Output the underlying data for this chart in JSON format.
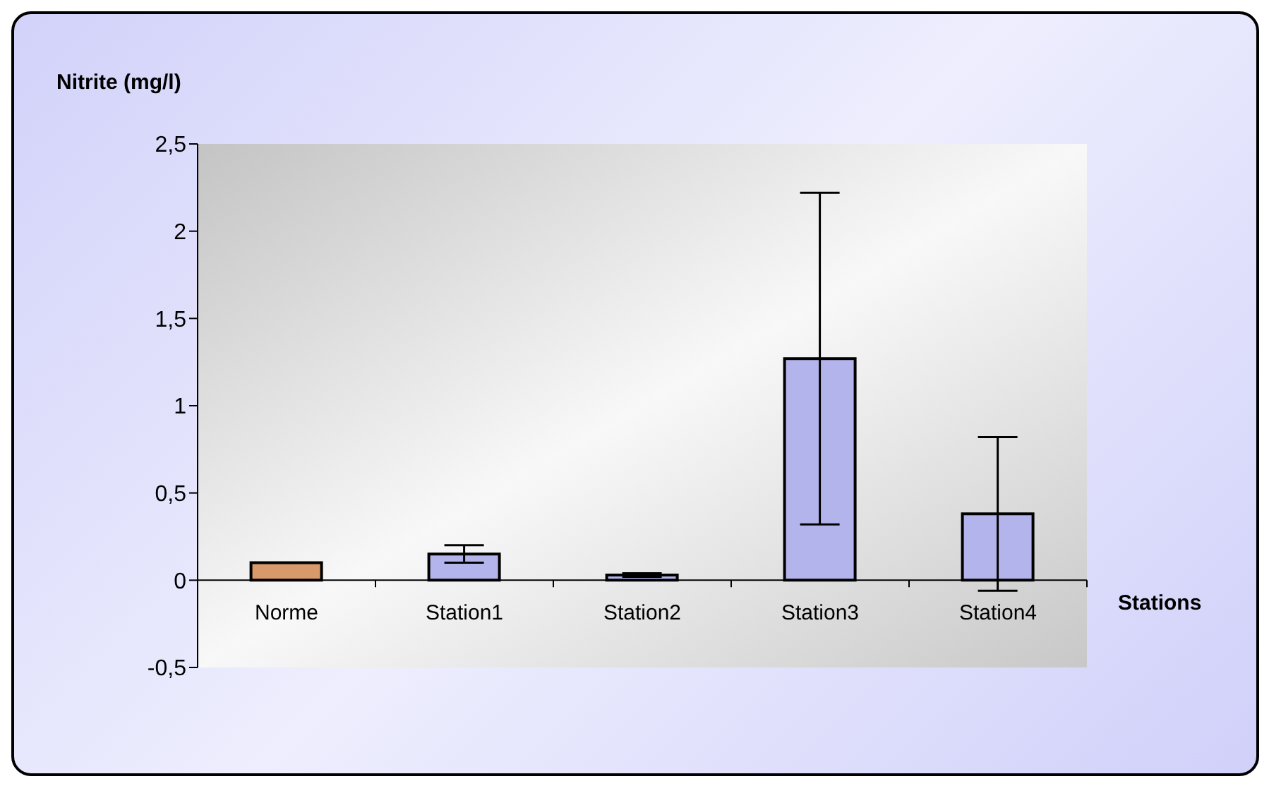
{
  "chart_data": {
    "type": "bar",
    "xlabel": "Stations",
    "ylabel": "Nitrite (mg/l)",
    "categories": [
      "Norme",
      "Station1",
      "Station2",
      "Station3",
      "Station4"
    ],
    "values": [
      0.1,
      0.15,
      0.03,
      1.27,
      0.38
    ],
    "errors": [
      null,
      0.05,
      0.01,
      0.95,
      0.44
    ],
    "colors": [
      "#d89a6a",
      "#b4b4ec",
      "#b4b4ec",
      "#b4b4ec",
      "#b4b4ec"
    ],
    "ylim": [
      -0.5,
      2.5
    ],
    "yticks": [
      {
        "value": -0.5,
        "label": "-0,5"
      },
      0,
      {
        "value": 0.5,
        "label": "0,5"
      },
      1,
      {
        "value": 1.5,
        "label": "1,5"
      },
      2,
      {
        "value": 2.5,
        "label": "2,5"
      }
    ],
    "grid": false,
    "legend": false
  }
}
